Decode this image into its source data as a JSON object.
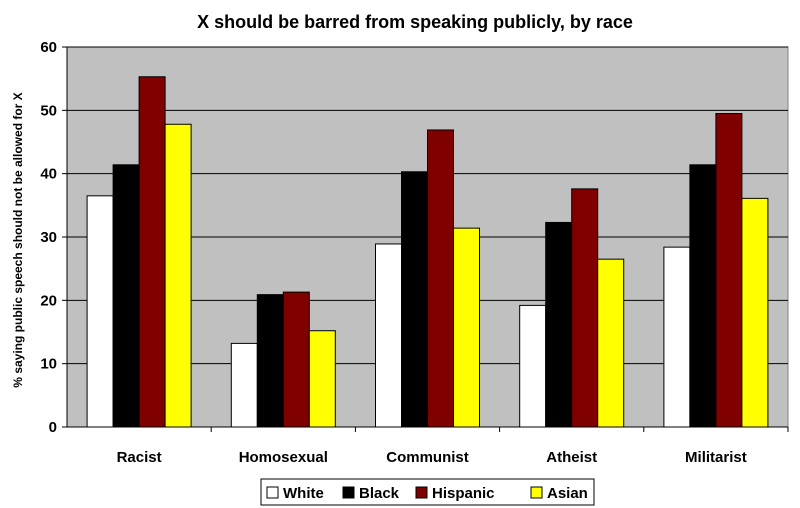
{
  "chart_data": {
    "type": "bar",
    "title": "X should be barred from speaking publicly, by race",
    "xlabel": "",
    "ylabel": "% saying public speech should not be allowed for X",
    "categories": [
      "Racist",
      "Homosexual",
      "Communist",
      "Atheist",
      "Militarist"
    ],
    "series": [
      {
        "name": "White",
        "color": "#ffffff",
        "values": [
          36.5,
          13.2,
          28.9,
          19.2,
          28.4
        ]
      },
      {
        "name": "Black",
        "color": "#000000",
        "values": [
          41.4,
          20.9,
          40.3,
          32.3,
          41.4
        ]
      },
      {
        "name": "Hispanic",
        "color": "#800000",
        "values": [
          55.3,
          21.3,
          46.9,
          37.6,
          49.5
        ]
      },
      {
        "name": "Asian",
        "color": "#ffff00",
        "values": [
          47.8,
          15.2,
          31.4,
          26.5,
          36.1
        ]
      }
    ],
    "ylim": [
      0,
      60
    ],
    "yticks": [
      "0",
      "10",
      "20",
      "30",
      "40",
      "50",
      "60"
    ],
    "grid": true,
    "plot_background": "#c0c0c0",
    "legend_position": "bottom"
  }
}
